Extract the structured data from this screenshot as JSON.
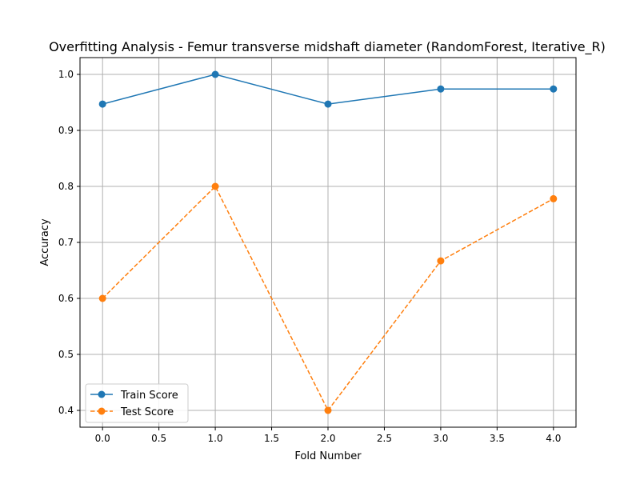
{
  "chart_data": {
    "type": "line",
    "title": "Overfitting Analysis - Femur transverse midshaft diameter (RandomForest, Iterative_R)",
    "xlabel": "Fold Number",
    "ylabel": "Accuracy",
    "x": [
      0,
      1,
      2,
      3,
      4
    ],
    "xlim": [
      -0.2,
      4.2
    ],
    "ylim": [
      0.37,
      1.03
    ],
    "xticks": [
      0.0,
      0.5,
      1.0,
      1.5,
      2.0,
      2.5,
      3.0,
      3.5,
      4.0
    ],
    "xtick_labels": [
      "0.0",
      "0.5",
      "1.0",
      "1.5",
      "2.0",
      "2.5",
      "3.0",
      "3.5",
      "4.0"
    ],
    "yticks": [
      0.4,
      0.5,
      0.6,
      0.7,
      0.8,
      0.9,
      1.0
    ],
    "ytick_labels": [
      "0.4",
      "0.5",
      "0.6",
      "0.7",
      "0.8",
      "0.9",
      "1.0"
    ],
    "grid": true,
    "legend_position": "bottom-left",
    "series": [
      {
        "name": "Train Score",
        "values": [
          0.947,
          1.0,
          0.947,
          0.974,
          0.974
        ],
        "color": "#1f77b4",
        "linestyle": "solid",
        "marker": "circle"
      },
      {
        "name": "Test Score",
        "values": [
          0.6,
          0.8,
          0.4,
          0.667,
          0.778
        ],
        "color": "#ff7f0e",
        "linestyle": "dashed",
        "marker": "circle"
      }
    ]
  }
}
